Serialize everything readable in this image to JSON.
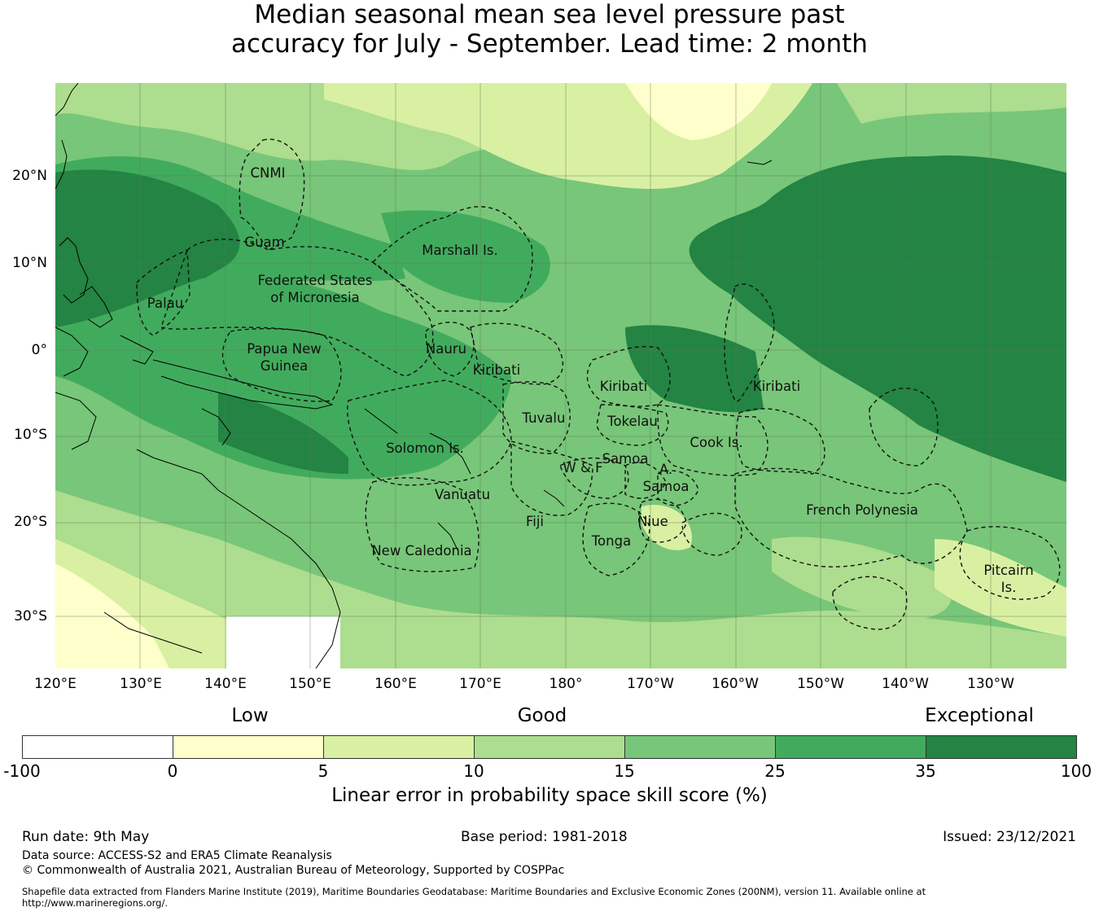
{
  "title": {
    "line1": "Median seasonal mean sea level pressure past",
    "line2": "accuracy for July - September. Lead time: 2 month"
  },
  "map": {
    "longitude_labels": [
      "120°E",
      "130°E",
      "140°E",
      "150°E",
      "160°E",
      "170°E",
      "180°",
      "170°W",
      "160°W",
      "150°W",
      "140°W",
      "130°W"
    ],
    "latitude_labels": [
      "20°N",
      "10°N",
      "0°",
      "10°S",
      "20°S",
      "30°S"
    ],
    "regions": [
      {
        "name": "cnmi",
        "label": "CNMI"
      },
      {
        "name": "guam",
        "label": "Guam"
      },
      {
        "name": "marshall",
        "label": "Marshall Is."
      },
      {
        "name": "fsm",
        "label": "Federated States of Micronesia"
      },
      {
        "name": "palau",
        "label": "Palau"
      },
      {
        "name": "png",
        "label": "Papua New Guinea"
      },
      {
        "name": "nauru",
        "label": "Nauru"
      },
      {
        "name": "kiribati-west",
        "label": "Kiribati"
      },
      {
        "name": "kiribati-central",
        "label": "Kiribati"
      },
      {
        "name": "kiribati-east",
        "label": "Kiribati"
      },
      {
        "name": "tuvalu",
        "label": "Tuvalu"
      },
      {
        "name": "tokelau",
        "label": "Tokelau"
      },
      {
        "name": "solomon",
        "label": "Solomon Is."
      },
      {
        "name": "cook",
        "label": "Cook Is."
      },
      {
        "name": "samoa",
        "label": "Samoa"
      },
      {
        "name": "wf",
        "label": "W & F"
      },
      {
        "name": "american-samoa",
        "label": "A. Samoa"
      },
      {
        "name": "vanuatu",
        "label": "Vanuatu"
      },
      {
        "name": "fiji",
        "label": "Fiji"
      },
      {
        "name": "niue",
        "label": "Niue"
      },
      {
        "name": "tonga",
        "label": "Tonga"
      },
      {
        "name": "new-caledonia",
        "label": "New Caledonia"
      },
      {
        "name": "french-polynesia",
        "label": "French Polynesia"
      },
      {
        "name": "pitcairn",
        "label": "Pitcairn Is."
      }
    ]
  },
  "legend": {
    "categories": [
      "Low",
      "Good",
      "Exceptional"
    ],
    "ticks": [
      "-100",
      "0",
      "5",
      "10",
      "15",
      "25",
      "35",
      "100"
    ],
    "colors": [
      "#ffffff",
      "#ffffcc",
      "#d9f0a3",
      "#addd8e",
      "#78c679",
      "#41ab5d",
      "#238443"
    ],
    "label": "Linear error in probability space skill score (%)"
  },
  "footer": {
    "run_date": "Run date: 9th May",
    "base_period": "Base period: 1981-2018",
    "issued": "Issued: 23/12/2021",
    "data_source": "Data source: ACCESS-S2 and ERA5 Climate Reanalysis",
    "copyright": "© Commonwealth of Australia 2021, Australian Bureau of Meteorology, Supported by COSPPac",
    "shapefile_line1": "Shapefile data extracted from Flanders Marine Institute (2019), Maritime Boundaries Geodatabase: Maritime Boundaries and Exclusive Economic Zones (200NM), version 11. Available online at",
    "shapefile_line2": "http://www.marineregions.org/."
  }
}
